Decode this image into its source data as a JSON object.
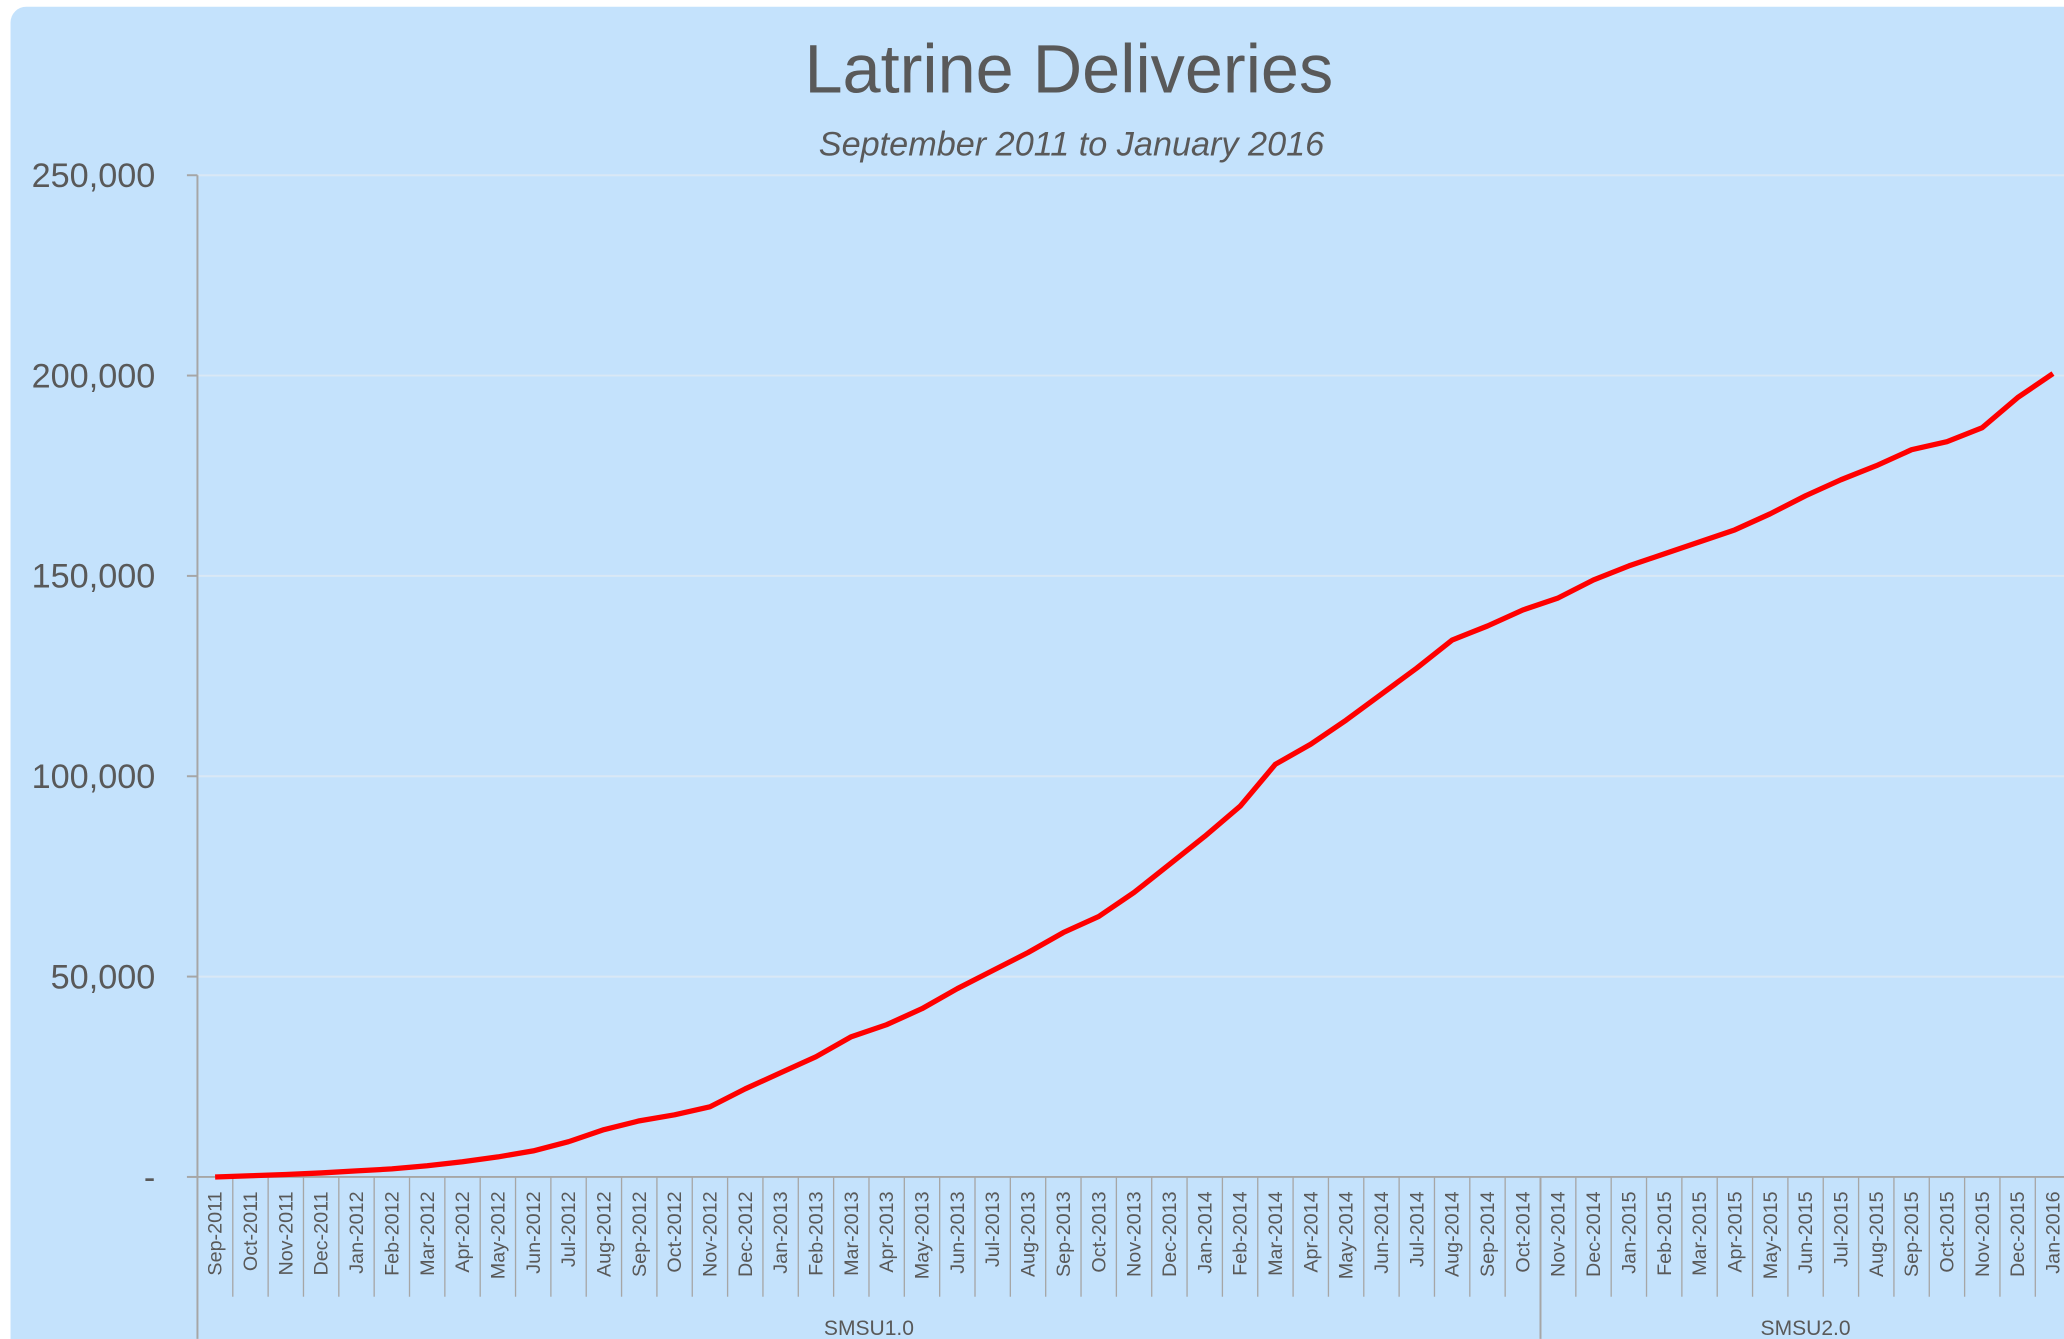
{
  "chart_data": {
    "type": "line",
    "title": "Latrine Deliveries",
    "subtitle": "September 2011 to January 2016",
    "groups": [
      {
        "label": "SMSU1.0",
        "categories": [
          "Sep-2011",
          "Oct-2011",
          "Nov-2011",
          "Dec-2011",
          "Jan-2012",
          "Feb-2012",
          "Mar-2012",
          "Apr-2012",
          "May-2012",
          "Jun-2012",
          "Jul-2012",
          "Aug-2012",
          "Sep-2012",
          "Oct-2012",
          "Nov-2012",
          "Dec-2012",
          "Jan-2013",
          "Feb-2013",
          "Mar-2013",
          "Apr-2013",
          "May-2013",
          "Jun-2013",
          "Jul-2013",
          "Aug-2013",
          "Sep-2013",
          "Oct-2013",
          "Nov-2013",
          "Dec-2013",
          "Jan-2014",
          "Feb-2014",
          "Mar-2014",
          "Apr-2014",
          "May-2014",
          "Jun-2014",
          "Jul-2014",
          "Aug-2014",
          "Sep-2014",
          "Oct-2014"
        ]
      },
      {
        "label": "SMSU2.0",
        "categories": [
          "Nov-2014",
          "Dec-2014",
          "Jan-2015",
          "Feb-2015",
          "Mar-2015",
          "Apr-2015",
          "May-2015",
          "Jun-2015",
          "Jul-2015",
          "Aug-2015",
          "Sep-2015",
          "Oct-2015",
          "Nov-2015",
          "Dec-2015",
          "Jan-2016"
        ]
      }
    ],
    "series": [
      {
        "color": "#ff0000",
        "values": [
          0,
          300,
          600,
          1000,
          1500,
          2000,
          2800,
          3800,
          5000,
          6500,
          8800,
          11800,
          14000,
          15500,
          17500,
          22000,
          26000,
          30000,
          35000,
          38000,
          42000,
          47000,
          51500,
          56000,
          61000,
          65000,
          71000,
          78000,
          85000,
          92500,
          103000,
          108000,
          114000,
          120500,
          127000,
          134000,
          137500,
          141500,
          144500,
          149000,
          152500,
          155500,
          158500,
          161500,
          165500,
          170000,
          174000,
          177500,
          181500,
          183500,
          187000,
          194500,
          200500
        ]
      }
    ],
    "ylim": [
      0,
      250000
    ],
    "yticks": [
      {
        "value": 0,
        "label": "-"
      },
      {
        "value": 50000,
        "label": "50,000"
      },
      {
        "value": 100000,
        "label": "100,000"
      },
      {
        "value": 150000,
        "label": "150,000"
      },
      {
        "value": 200000,
        "label": "200,000"
      },
      {
        "value": 250000,
        "label": "250,000"
      }
    ],
    "grid": true
  }
}
